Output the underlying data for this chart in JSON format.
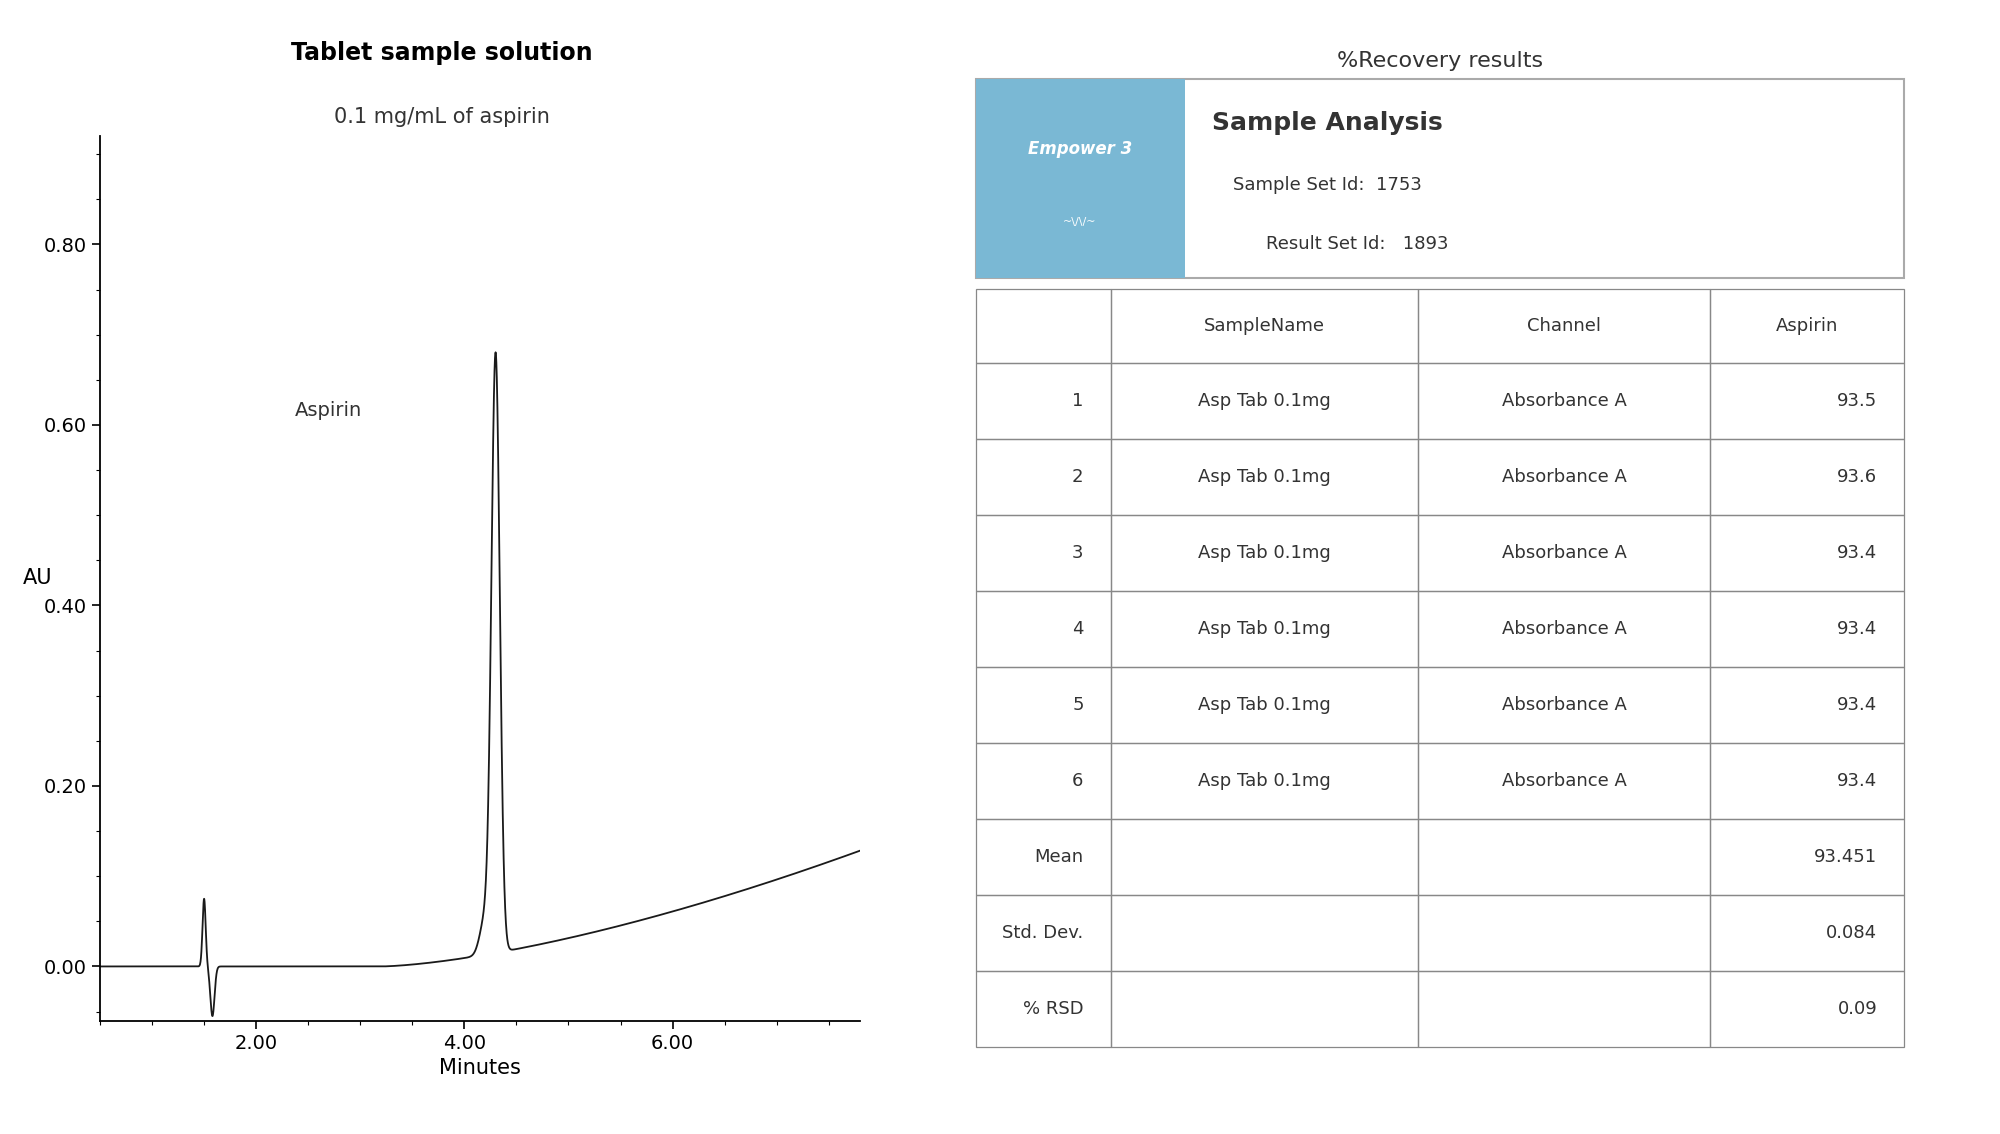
{
  "chart_title": "Tablet sample solution",
  "chart_subtitle": "0.1 mg/mL of aspirin",
  "xlabel": "Minutes",
  "ylabel": "AU",
  "yticks": [
    0.0,
    0.2,
    0.4,
    0.6,
    0.8
  ],
  "xticks": [
    2.0,
    4.0,
    6.0
  ],
  "xlim": [
    0.5,
    7.8
  ],
  "ylim": [
    -0.06,
    0.92
  ],
  "aspirin_label": "Aspirin",
  "recovery_title": "%Recovery results",
  "empower_text1": "Sample Analysis",
  "empower_text2": "Sample Set Id:  1753",
  "empower_text3": "Result Set Id:   1893",
  "empower_logo": "Empower 3",
  "empower_logo2": "~~~/~~~",
  "table_headers": [
    "",
    "SampleName",
    "Channel",
    "Aspirin"
  ],
  "table_rows": [
    [
      "1",
      "Asp Tab 0.1mg",
      "Absorbance A",
      "93.5"
    ],
    [
      "2",
      "Asp Tab 0.1mg",
      "Absorbance A",
      "93.6"
    ],
    [
      "3",
      "Asp Tab 0.1mg",
      "Absorbance A",
      "93.4"
    ],
    [
      "4",
      "Asp Tab 0.1mg",
      "Absorbance A",
      "93.4"
    ],
    [
      "5",
      "Asp Tab 0.1mg",
      "Absorbance A",
      "93.4"
    ],
    [
      "6",
      "Asp Tab 0.1mg",
      "Absorbance A",
      "93.4"
    ],
    [
      "Mean",
      "",
      "",
      "93.451"
    ],
    [
      "Std. Dev.",
      "",
      "",
      "0.084"
    ],
    [
      "% RSD",
      "",
      "",
      "0.09"
    ]
  ],
  "bg_color": "#ffffff",
  "line_color": "#1a1a1a",
  "empower_box_color": "#7ab8d4",
  "empower_box_border": "#aaaaaa",
  "table_border_color": "#888888",
  "text_color": "#333333",
  "title_fontsize": 17,
  "subtitle_fontsize": 15,
  "tick_fontsize": 14,
  "label_fontsize": 15,
  "aspirin_fontsize": 14,
  "recovery_fontsize": 16,
  "empower_title_fontsize": 18,
  "empower_sub_fontsize": 13,
  "table_header_fontsize": 13,
  "table_cell_fontsize": 13
}
